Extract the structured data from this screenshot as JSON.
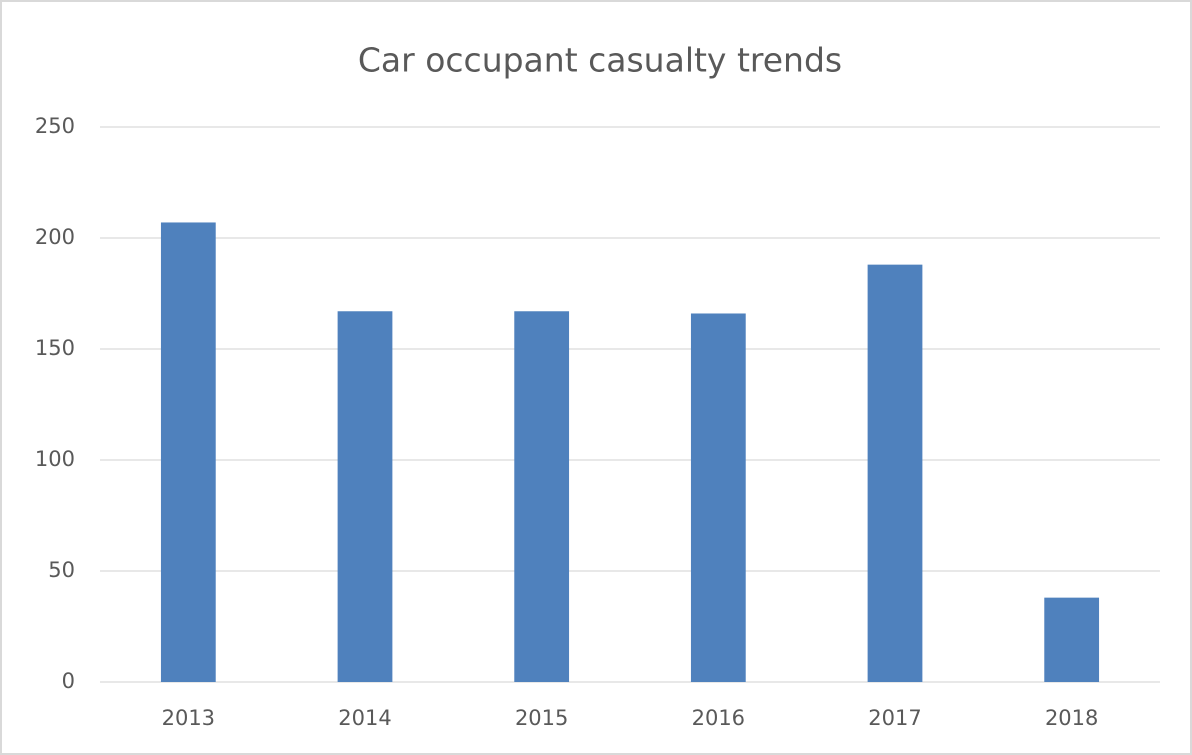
{
  "chart_data": {
    "type": "bar",
    "title": "Car occupant casualty trends",
    "categories": [
      "2013",
      "2014",
      "2015",
      "2016",
      "2017",
      "2018"
    ],
    "values": [
      207,
      167,
      167,
      166,
      188,
      38
    ],
    "color": "#4f81bd",
    "ylim": [
      0,
      250
    ],
    "yticks": [
      0,
      50,
      100,
      150,
      200,
      250
    ],
    "grid": true
  }
}
